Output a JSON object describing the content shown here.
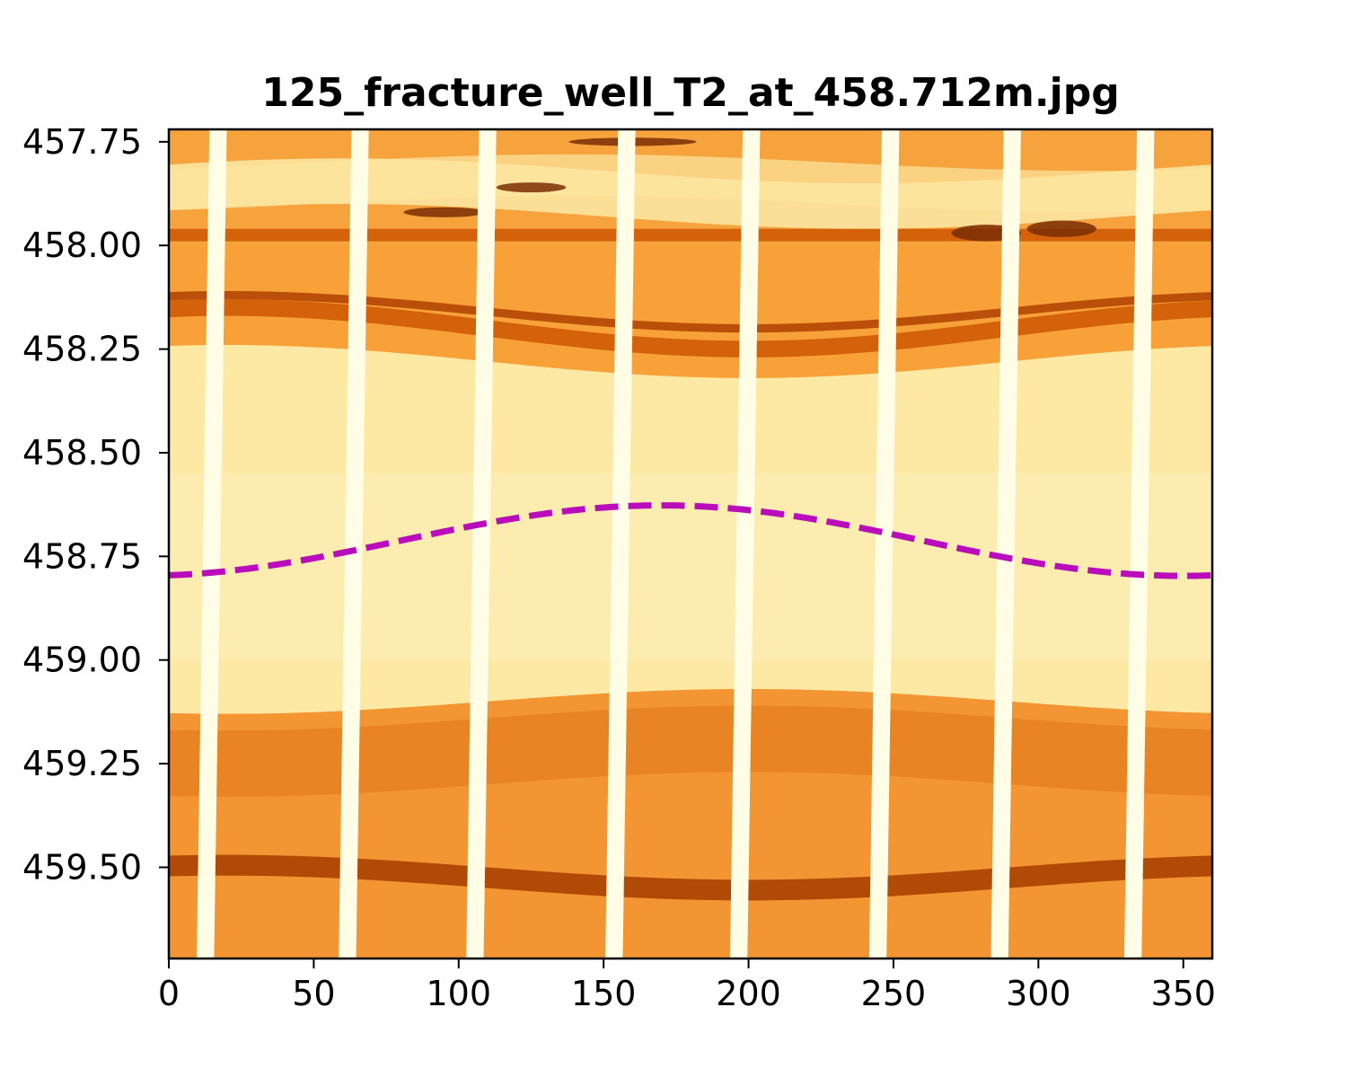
{
  "chart_data": {
    "type": "image",
    "title": "125_fracture_well_T2_at_458.712m.jpg",
    "xlabel": "",
    "ylabel": "",
    "xlim": [
      0,
      360
    ],
    "ylim": [
      457.72,
      459.72
    ],
    "y_inverted": true,
    "grid": false,
    "x_ticks": [
      0,
      50,
      100,
      150,
      200,
      250,
      300,
      350
    ],
    "y_ticks": [
      457.75,
      458.0,
      458.25,
      458.5,
      458.75,
      459.0,
      459.25,
      459.5
    ],
    "y_tick_labels": [
      "457.75",
      "458.00",
      "458.25",
      "458.50",
      "458.75",
      "459.00",
      "459.25",
      "459.50"
    ],
    "colormap": "afmhot",
    "colors": {
      "pad_gap": "#fffde6",
      "light_band": "#fde9a4",
      "mid": "#f9a43a",
      "dark": "#d4620a",
      "darkest": "#7a2e05",
      "sinusoid": "#b90dbc"
    },
    "series": [
      {
        "type": "sinusoid",
        "style": "dashed",
        "center_depth": 458.712,
        "amplitude": 0.085,
        "min_depth_azimuth": 170,
        "color": "#b90dbc"
      }
    ]
  }
}
